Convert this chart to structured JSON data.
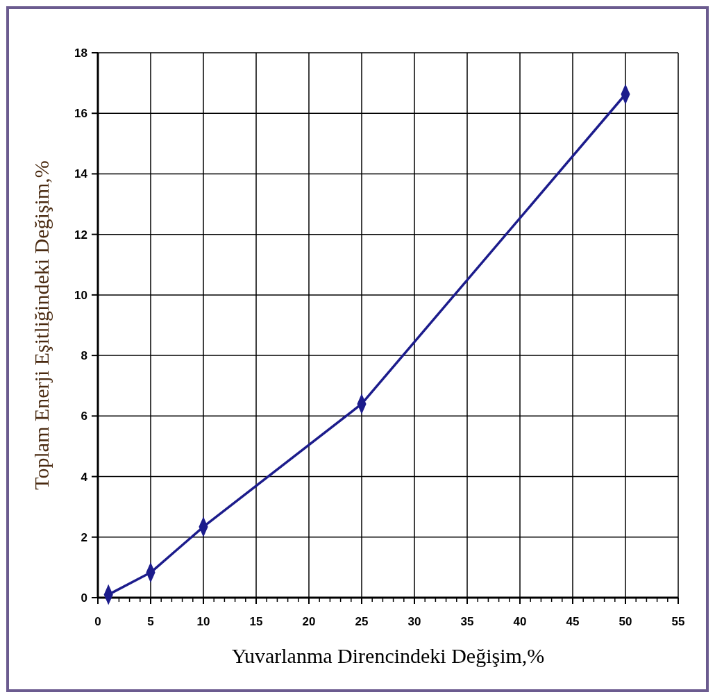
{
  "chart_data": {
    "type": "line",
    "xlabel": "Yuvarlanma Direncindeki Değişim,%",
    "ylabel": "Toplam Enerji Eşitliğindeki Değişim,%",
    "x": [
      1,
      5,
      10,
      25,
      50
    ],
    "series": [
      {
        "color": "#1c1c8c",
        "values": [
          0.1,
          0.83,
          2.34,
          6.4,
          16.63
        ]
      }
    ],
    "xlim": [
      0,
      55
    ],
    "xticks": [
      0,
      5,
      10,
      15,
      20,
      25,
      30,
      35,
      40,
      45,
      50,
      55
    ],
    "ylim": [
      0,
      18
    ],
    "yticks": [
      0,
      2,
      4,
      6,
      8,
      10,
      12,
      14,
      16,
      18
    ],
    "grid": true,
    "marker": "diamond",
    "line_style": "solid"
  }
}
